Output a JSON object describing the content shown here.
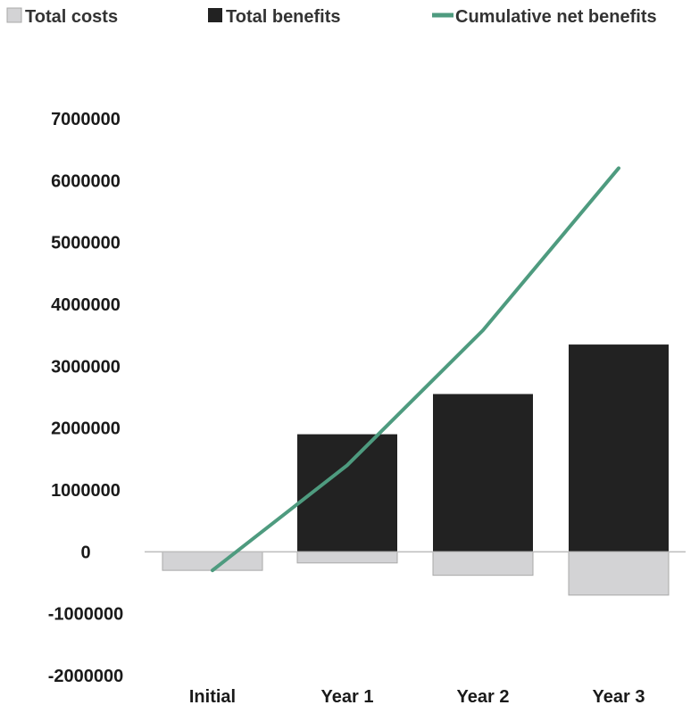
{
  "chart_data": {
    "type": "bar",
    "categories": [
      "Initial",
      "Year 1",
      "Year 2",
      "Year 3"
    ],
    "series": [
      {
        "name": "Total costs",
        "kind": "bar",
        "color": "#d3d3d5",
        "values": [
          -300000,
          -180000,
          -380000,
          -700000
        ]
      },
      {
        "name": "Total benefits",
        "kind": "bar",
        "color": "#222222",
        "values": [
          0,
          1900000,
          2550000,
          3350000
        ]
      },
      {
        "name": "Cumulative net benefits",
        "kind": "line",
        "color": "#4e9b7f",
        "values": [
          -300000,
          1400000,
          3580000,
          6200000
        ]
      }
    ],
    "yticks": [
      "7000000",
      "6000000",
      "5000000",
      "4000000",
      "3000000",
      "2000000",
      "1000000",
      "0",
      "-1000000",
      "-2000000"
    ],
    "ylim": [
      -2000000,
      7000000
    ],
    "title": "",
    "xlabel": "",
    "ylabel": "",
    "grid": false,
    "legend_position": "top"
  }
}
